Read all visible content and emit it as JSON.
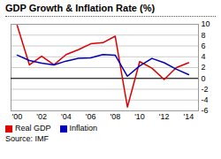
{
  "chart_data": {
    "type": "line",
    "title": "GDP Growth & Inflation Rate (%)",
    "x": [
      2000,
      2001,
      2002,
      2003,
      2004,
      2005,
      2006,
      2007,
      2008,
      2009,
      2010,
      2011,
      2012,
      2013,
      2014
    ],
    "series": [
      {
        "name": "Real GDP",
        "color": "#dd0000",
        "values": [
          9.8,
          2.5,
          4.1,
          2.5,
          4.4,
          5.3,
          6.4,
          6.6,
          7.8,
          -5.3,
          3.1,
          1.9,
          -0.2,
          2.0,
          2.9
        ]
      },
      {
        "name": "Inflation",
        "color": "#0000bb",
        "values": [
          4.3,
          3.3,
          2.8,
          2.5,
          3.2,
          3.7,
          3.8,
          4.4,
          4.3,
          0.4,
          2.3,
          3.7,
          2.9,
          1.7,
          0.7
        ]
      }
    ],
    "xlim": [
      1999.5,
      2014.8
    ],
    "xticks": [
      {
        "value": 2000,
        "label": "'00"
      },
      {
        "value": 2002,
        "label": "'02"
      },
      {
        "value": 2004,
        "label": "'04"
      },
      {
        "value": 2006,
        "label": "'06"
      },
      {
        "value": 2008,
        "label": "'08"
      },
      {
        "value": 2010,
        "label": "'10"
      },
      {
        "value": 2012,
        "label": "'12"
      },
      {
        "value": 2014,
        "label": "'14"
      }
    ],
    "ylim": [
      -6,
      10
    ],
    "yticks": [
      -6,
      -4,
      -2,
      0,
      2,
      4,
      6,
      8,
      10
    ],
    "grid": true,
    "legend": "lower left",
    "annotations": [
      "Source: IMF"
    ]
  }
}
